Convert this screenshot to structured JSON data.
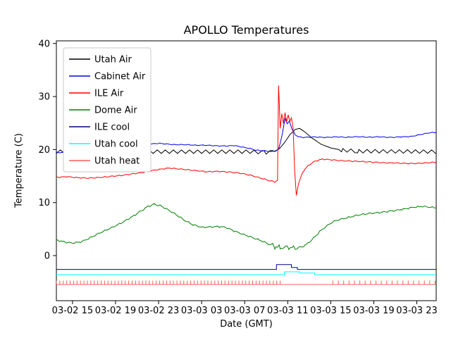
{
  "chart_data": {
    "type": "line",
    "title": "APOLLO Temperatures",
    "xlabel": "Date (GMT)",
    "ylabel": "Temperature (C)",
    "x_unit": "hours since 03-02 12:00 GMT",
    "xlim": [
      1.5,
      36.8
    ],
    "ylim": [
      -8.5,
      40.5
    ],
    "grid": false,
    "yticks": [
      0,
      10,
      20,
      30,
      40
    ],
    "xticks": [
      {
        "t": 3,
        "label": "03-02 15"
      },
      {
        "t": 7,
        "label": "03-02 19"
      },
      {
        "t": 11,
        "label": "03-02 23"
      },
      {
        "t": 15,
        "label": "03-03 03"
      },
      {
        "t": 19,
        "label": "03-03 07"
      },
      {
        "t": 23,
        "label": "03-03 11"
      },
      {
        "t": 27,
        "label": "03-03 15"
      },
      {
        "t": 31,
        "label": "03-03 19"
      },
      {
        "t": 35,
        "label": "03-03 23"
      }
    ],
    "legend": {
      "position": "upper left",
      "entries": [
        "Utah Air",
        "Cabinet Air",
        "ILE Air",
        "Dome Air",
        "ILE cool",
        "Utah cool",
        "Utah heat"
      ]
    },
    "series": [
      {
        "name": "Utah Air",
        "color": "#000000",
        "type": "line",
        "zigzag": {
          "amplitude": 0.33,
          "period": 0.75,
          "intervals": [
            [
              1.5,
              21.6
            ],
            [
              27.8,
              36.8
            ]
          ]
        },
        "points": [
          [
            1.5,
            19.6
          ],
          [
            19.5,
            19.6
          ],
          [
            20.8,
            19.45
          ],
          [
            21.6,
            19.5
          ],
          [
            22.2,
            20.1
          ],
          [
            22.7,
            21.3
          ],
          [
            23.2,
            22.8
          ],
          [
            23.7,
            23.8
          ],
          [
            24.1,
            24.0
          ],
          [
            24.6,
            23.3
          ],
          [
            25.3,
            22.1
          ],
          [
            26.1,
            21.0
          ],
          [
            27.0,
            20.3
          ],
          [
            28.0,
            19.9
          ],
          [
            29.5,
            19.7
          ],
          [
            36.8,
            19.6
          ]
        ]
      },
      {
        "name": "Cabinet Air",
        "color": "#0000ee",
        "type": "line",
        "noise": 0.06,
        "points": [
          [
            1.5,
            19.5
          ],
          [
            2.5,
            19.4
          ],
          [
            3.5,
            19.5
          ],
          [
            4.5,
            19.6
          ],
          [
            5.5,
            19.7
          ],
          [
            6.5,
            19.9
          ],
          [
            7.5,
            20.1
          ],
          [
            8.5,
            20.5
          ],
          [
            9.5,
            20.9
          ],
          [
            10.5,
            21.1
          ],
          [
            11.0,
            21.2
          ],
          [
            11.5,
            21.1
          ],
          [
            12.5,
            20.9
          ],
          [
            13.5,
            20.9
          ],
          [
            14.5,
            20.8
          ],
          [
            15.5,
            20.8
          ],
          [
            16.5,
            20.7
          ],
          [
            17.5,
            20.7
          ],
          [
            18.0,
            20.8
          ],
          [
            18.5,
            20.6
          ],
          [
            19.5,
            20.2
          ],
          [
            20.0,
            19.9
          ],
          [
            20.5,
            19.8
          ],
          [
            21.0,
            19.7
          ],
          [
            21.5,
            19.6
          ],
          [
            21.9,
            19.7
          ],
          [
            22.2,
            20.3
          ],
          [
            22.5,
            23.0
          ],
          [
            22.75,
            25.8
          ],
          [
            22.95,
            24.8
          ],
          [
            23.15,
            25.4
          ],
          [
            23.4,
            23.8
          ],
          [
            23.7,
            22.8
          ],
          [
            24.0,
            22.4
          ],
          [
            24.5,
            22.3
          ],
          [
            25.5,
            22.4
          ],
          [
            26.5,
            22.3
          ],
          [
            27.5,
            22.4
          ],
          [
            28.5,
            22.3
          ],
          [
            29.5,
            22.4
          ],
          [
            30.5,
            22.3
          ],
          [
            31.5,
            22.4
          ],
          [
            32.5,
            22.3
          ],
          [
            33.5,
            22.4
          ],
          [
            34.5,
            22.5
          ],
          [
            35.5,
            22.9
          ],
          [
            36.3,
            23.2
          ],
          [
            36.8,
            23.2
          ]
        ]
      },
      {
        "name": "ILE Air",
        "color": "#ff0000",
        "type": "line",
        "noise": 0.07,
        "points": [
          [
            1.5,
            14.8
          ],
          [
            2.5,
            14.9
          ],
          [
            3.5,
            14.7
          ],
          [
            4.5,
            14.6
          ],
          [
            5.5,
            14.7
          ],
          [
            6.5,
            14.9
          ],
          [
            7.5,
            15.1
          ],
          [
            8.5,
            15.4
          ],
          [
            9.5,
            15.7
          ],
          [
            10.5,
            16.1
          ],
          [
            11.5,
            16.4
          ],
          [
            12.0,
            16.5
          ],
          [
            12.5,
            16.4
          ],
          [
            13.5,
            16.2
          ],
          [
            14.5,
            16.0
          ],
          [
            15.5,
            15.8
          ],
          [
            16.5,
            15.9
          ],
          [
            17.5,
            15.8
          ],
          [
            18.5,
            15.6
          ],
          [
            19.5,
            15.2
          ],
          [
            20.5,
            14.6
          ],
          [
            21.3,
            14.1
          ],
          [
            21.8,
            13.9
          ],
          [
            22.05,
            14.2
          ],
          [
            22.15,
            32.0
          ],
          [
            22.3,
            24.0
          ],
          [
            22.45,
            26.8
          ],
          [
            22.6,
            25.0
          ],
          [
            22.75,
            26.9
          ],
          [
            22.9,
            25.2
          ],
          [
            23.05,
            26.6
          ],
          [
            23.2,
            25.3
          ],
          [
            23.35,
            26.0
          ],
          [
            23.5,
            24.0
          ],
          [
            23.65,
            16.0
          ],
          [
            23.8,
            11.4
          ],
          [
            24.0,
            13.5
          ],
          [
            24.4,
            15.8
          ],
          [
            24.9,
            17.0
          ],
          [
            25.5,
            17.8
          ],
          [
            26.2,
            18.2
          ],
          [
            27.0,
            18.1
          ],
          [
            28.0,
            17.9
          ],
          [
            29.0,
            17.8
          ],
          [
            30.0,
            17.7
          ],
          [
            31.0,
            17.6
          ],
          [
            32.0,
            17.5
          ],
          [
            33.0,
            17.5
          ],
          [
            34.0,
            17.4
          ],
          [
            35.0,
            17.4
          ],
          [
            36.0,
            17.5
          ],
          [
            36.8,
            17.6
          ]
        ]
      },
      {
        "name": "Dome Air",
        "color": "#008000",
        "type": "line",
        "noise": 0.1,
        "noise_boost": {
          "intervals": [
            [
              21.6,
              24.2
            ]
          ],
          "factor": 3
        },
        "points": [
          [
            1.5,
            3.0
          ],
          [
            2.2,
            2.6
          ],
          [
            3.0,
            2.4
          ],
          [
            3.8,
            2.6
          ],
          [
            4.5,
            3.2
          ],
          [
            5.5,
            4.2
          ],
          [
            6.5,
            5.1
          ],
          [
            7.5,
            6.1
          ],
          [
            8.5,
            7.3
          ],
          [
            9.2,
            8.2
          ],
          [
            10.0,
            9.3
          ],
          [
            10.6,
            9.7
          ],
          [
            11.2,
            9.4
          ],
          [
            12.0,
            8.5
          ],
          [
            12.8,
            7.5
          ],
          [
            13.5,
            6.5
          ],
          [
            14.2,
            5.8
          ],
          [
            15.0,
            5.3
          ],
          [
            15.8,
            5.4
          ],
          [
            16.5,
            5.5
          ],
          [
            17.2,
            5.4
          ],
          [
            18.0,
            4.7
          ],
          [
            18.8,
            4.1
          ],
          [
            19.6,
            3.5
          ],
          [
            20.4,
            2.9
          ],
          [
            21.2,
            2.2
          ],
          [
            21.8,
            1.7
          ],
          [
            22.3,
            1.4
          ],
          [
            23.0,
            1.5
          ],
          [
            23.6,
            1.4
          ],
          [
            24.2,
            1.5
          ],
          [
            24.8,
            2.2
          ],
          [
            25.4,
            3.3
          ],
          [
            26.0,
            4.6
          ],
          [
            26.6,
            5.6
          ],
          [
            27.2,
            6.4
          ],
          [
            27.8,
            6.8
          ],
          [
            28.5,
            7.1
          ],
          [
            29.5,
            7.6
          ],
          [
            30.5,
            7.9
          ],
          [
            31.5,
            8.1
          ],
          [
            32.5,
            8.4
          ],
          [
            33.5,
            8.7
          ],
          [
            34.5,
            9.1
          ],
          [
            35.5,
            9.3
          ],
          [
            36.3,
            9.1
          ],
          [
            36.8,
            9.0
          ]
        ]
      },
      {
        "name": "ILE cool",
        "color": "#000080",
        "type": "line",
        "points": [
          [
            1.5,
            -2.6
          ],
          [
            21.95,
            -2.6
          ],
          [
            21.95,
            -1.7
          ],
          [
            23.35,
            -1.7
          ],
          [
            23.35,
            -2.25
          ],
          [
            23.9,
            -2.25
          ],
          [
            23.9,
            -2.6
          ],
          [
            36.8,
            -2.6
          ]
        ]
      },
      {
        "name": "Utah cool",
        "color": "#00ffff",
        "type": "line",
        "points": [
          [
            1.5,
            -3.6
          ],
          [
            22.7,
            -3.6
          ],
          [
            22.7,
            -3.05
          ],
          [
            24.1,
            -3.05
          ],
          [
            24.1,
            -3.3
          ],
          [
            25.5,
            -3.3
          ],
          [
            25.5,
            -3.6
          ],
          [
            36.8,
            -3.6
          ]
        ]
      },
      {
        "name": "Utah heat",
        "color": "#fa5f55",
        "type": "comb",
        "baseline": -5.45,
        "top": -4.72,
        "intervals": [
          [
            1.5,
            22.55,
            0.32
          ],
          [
            27.2,
            36.8,
            0.5
          ]
        ]
      }
    ]
  }
}
